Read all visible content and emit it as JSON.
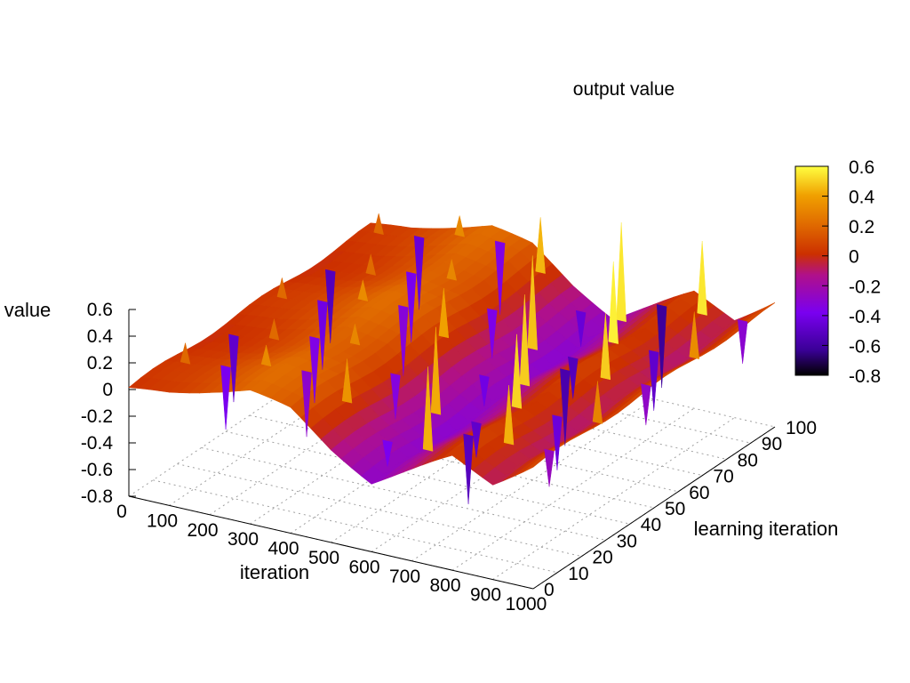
{
  "chart_data": {
    "type": "surface3d",
    "title": "output value",
    "xlabel": "iteration",
    "ylabel": "learning iteration",
    "zlabel": "value",
    "xlim": [
      0,
      1000
    ],
    "ylim": [
      0,
      100
    ],
    "zlim": [
      -0.8,
      0.6
    ],
    "x_ticks": [
      "0",
      "100",
      "200",
      "300",
      "400",
      "500",
      "600",
      "700",
      "800",
      "900",
      "1000"
    ],
    "y_ticks": [
      "0",
      "10",
      "20",
      "30",
      "40",
      "50",
      "60",
      "70",
      "80",
      "90",
      "100"
    ],
    "z_ticks": [
      "0.6",
      "0.4",
      "0.2",
      "0",
      "-0.2",
      "-0.4",
      "-0.6",
      "-0.8"
    ],
    "colorbar": {
      "ticks": [
        "0.6",
        "0.4",
        "0.2",
        "0",
        "-0.2",
        "-0.4",
        "-0.6",
        "-0.8"
      ],
      "range": [
        -0.8,
        0.6
      ],
      "palette": [
        "#000000",
        "#3a0096",
        "#7a00f0",
        "#c8007a",
        "#d84000",
        "#ee8800",
        "#ffd800",
        "#ffff40"
      ]
    },
    "grid": true,
    "surface_profile_x": [
      0,
      100,
      200,
      300,
      400,
      500,
      600,
      700,
      800,
      900,
      1000
    ],
    "surface_profile_z": [
      0.0,
      0.05,
      0.13,
      0.2,
      0.13,
      -0.1,
      -0.28,
      -0.12,
      0.05,
      -0.08,
      0.12
    ],
    "spikes": {
      "x_values": [
        50,
        150,
        250,
        350,
        450,
        550,
        650,
        750,
        850,
        950
      ],
      "high_z": [
        0.05,
        0.1,
        0.18,
        0.32,
        0.45,
        0.5,
        0.55,
        0.6,
        0.55,
        0.35
      ],
      "low_z": [
        -0.55,
        -0.45,
        -0.4,
        -0.35,
        -0.38,
        -0.45,
        -0.55,
        -0.62,
        -0.5,
        -0.3
      ]
    }
  }
}
